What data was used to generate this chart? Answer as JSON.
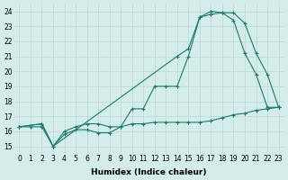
{
  "xlabel": "Humidex (Indice chaleur)",
  "background_color": "#d4ecea",
  "grid_color": "#b8d8d6",
  "line_color": "#1e7a6e",
  "xlim": [
    -0.5,
    23.5
  ],
  "ylim": [
    14.5,
    24.5
  ],
  "yticks": [
    15,
    16,
    17,
    18,
    19,
    20,
    21,
    22,
    23,
    24
  ],
  "xticks": [
    0,
    1,
    2,
    3,
    4,
    5,
    6,
    7,
    8,
    9,
    10,
    11,
    12,
    13,
    14,
    15,
    16,
    17,
    18,
    19,
    20,
    21,
    22,
    23
  ],
  "line1_x": [
    0,
    1,
    2,
    3,
    4,
    5,
    6,
    7,
    8,
    9,
    10,
    11,
    12,
    13,
    14,
    15,
    16,
    17,
    18,
    19,
    20,
    21,
    22,
    23
  ],
  "line1_y": [
    16.3,
    16.3,
    16.3,
    15.0,
    15.8,
    16.1,
    16.1,
    15.9,
    15.9,
    16.3,
    16.5,
    16.5,
    16.6,
    16.6,
    16.6,
    16.6,
    16.6,
    16.7,
    16.9,
    17.1,
    17.2,
    17.4,
    17.5,
    17.6
  ],
  "line2_x": [
    0,
    2,
    3,
    4,
    5,
    6,
    7,
    8,
    9,
    10,
    11,
    12,
    13,
    14,
    15,
    16,
    17,
    18,
    19,
    20,
    21,
    22,
    23
  ],
  "line2_y": [
    16.3,
    16.5,
    15.0,
    16.0,
    16.3,
    16.5,
    16.5,
    16.3,
    16.3,
    17.5,
    17.5,
    19.0,
    19.0,
    19.0,
    21.0,
    23.6,
    23.8,
    23.9,
    23.4,
    21.2,
    19.8,
    17.6,
    17.6
  ],
  "line3_x": [
    0,
    2,
    3,
    14,
    15,
    16,
    17,
    18,
    19,
    20,
    21,
    22,
    23
  ],
  "line3_y": [
    16.3,
    16.5,
    15.0,
    21.0,
    21.5,
    23.6,
    24.0,
    23.9,
    23.9,
    23.2,
    21.2,
    19.8,
    17.6
  ]
}
